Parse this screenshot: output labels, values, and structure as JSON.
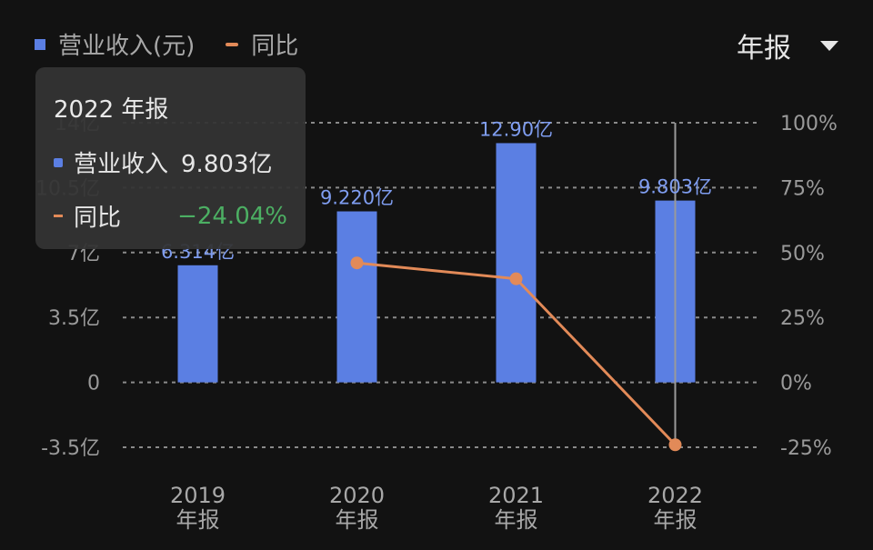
{
  "legend": {
    "revenue_label": "营业收入(元)",
    "yoy_label": "同比",
    "revenue_color": "#5b7fe3",
    "yoy_color": "#e28a58"
  },
  "period_selector": {
    "label": "年报",
    "icon": "caret-down-icon"
  },
  "tooltip": {
    "title": "2022 年报",
    "revenue_label": "营业收入",
    "revenue_value": "9.803亿",
    "yoy_label": "同比",
    "yoy_value": "−24.04%",
    "yoy_value_color": "#4caf63"
  },
  "chart_data": {
    "type": "bar",
    "categories": [
      "2019",
      "2020",
      "2021",
      "2022"
    ],
    "category_sublabel": "年报",
    "series": [
      {
        "name": "营业收入(元)",
        "type": "bar",
        "axis": "left",
        "values": [
          6.314,
          9.22,
          12.9,
          9.803
        ],
        "labels": [
          "6.314亿",
          "9.220亿",
          "12.90亿",
          "9.803亿"
        ]
      },
      {
        "name": "同比",
        "type": "line",
        "axis": "right",
        "values": [
          null,
          46.0,
          39.9,
          -24.04
        ]
      }
    ],
    "y_left": {
      "min": -3.5,
      "max": 14,
      "ticks": [
        -3.5,
        0,
        3.5,
        7,
        10.5,
        14
      ],
      "tick_labels": [
        "-3.5亿",
        "0",
        "3.5亿",
        "7亿",
        "10.5亿",
        "14亿"
      ]
    },
    "y_right": {
      "min": -25,
      "max": 100,
      "ticks": [
        -25,
        0,
        25,
        50,
        75,
        100
      ],
      "tick_labels": [
        "-25%",
        "0%",
        "25%",
        "50%",
        "75%",
        "100%"
      ]
    },
    "highlighted_category": "2022",
    "grid": true
  }
}
